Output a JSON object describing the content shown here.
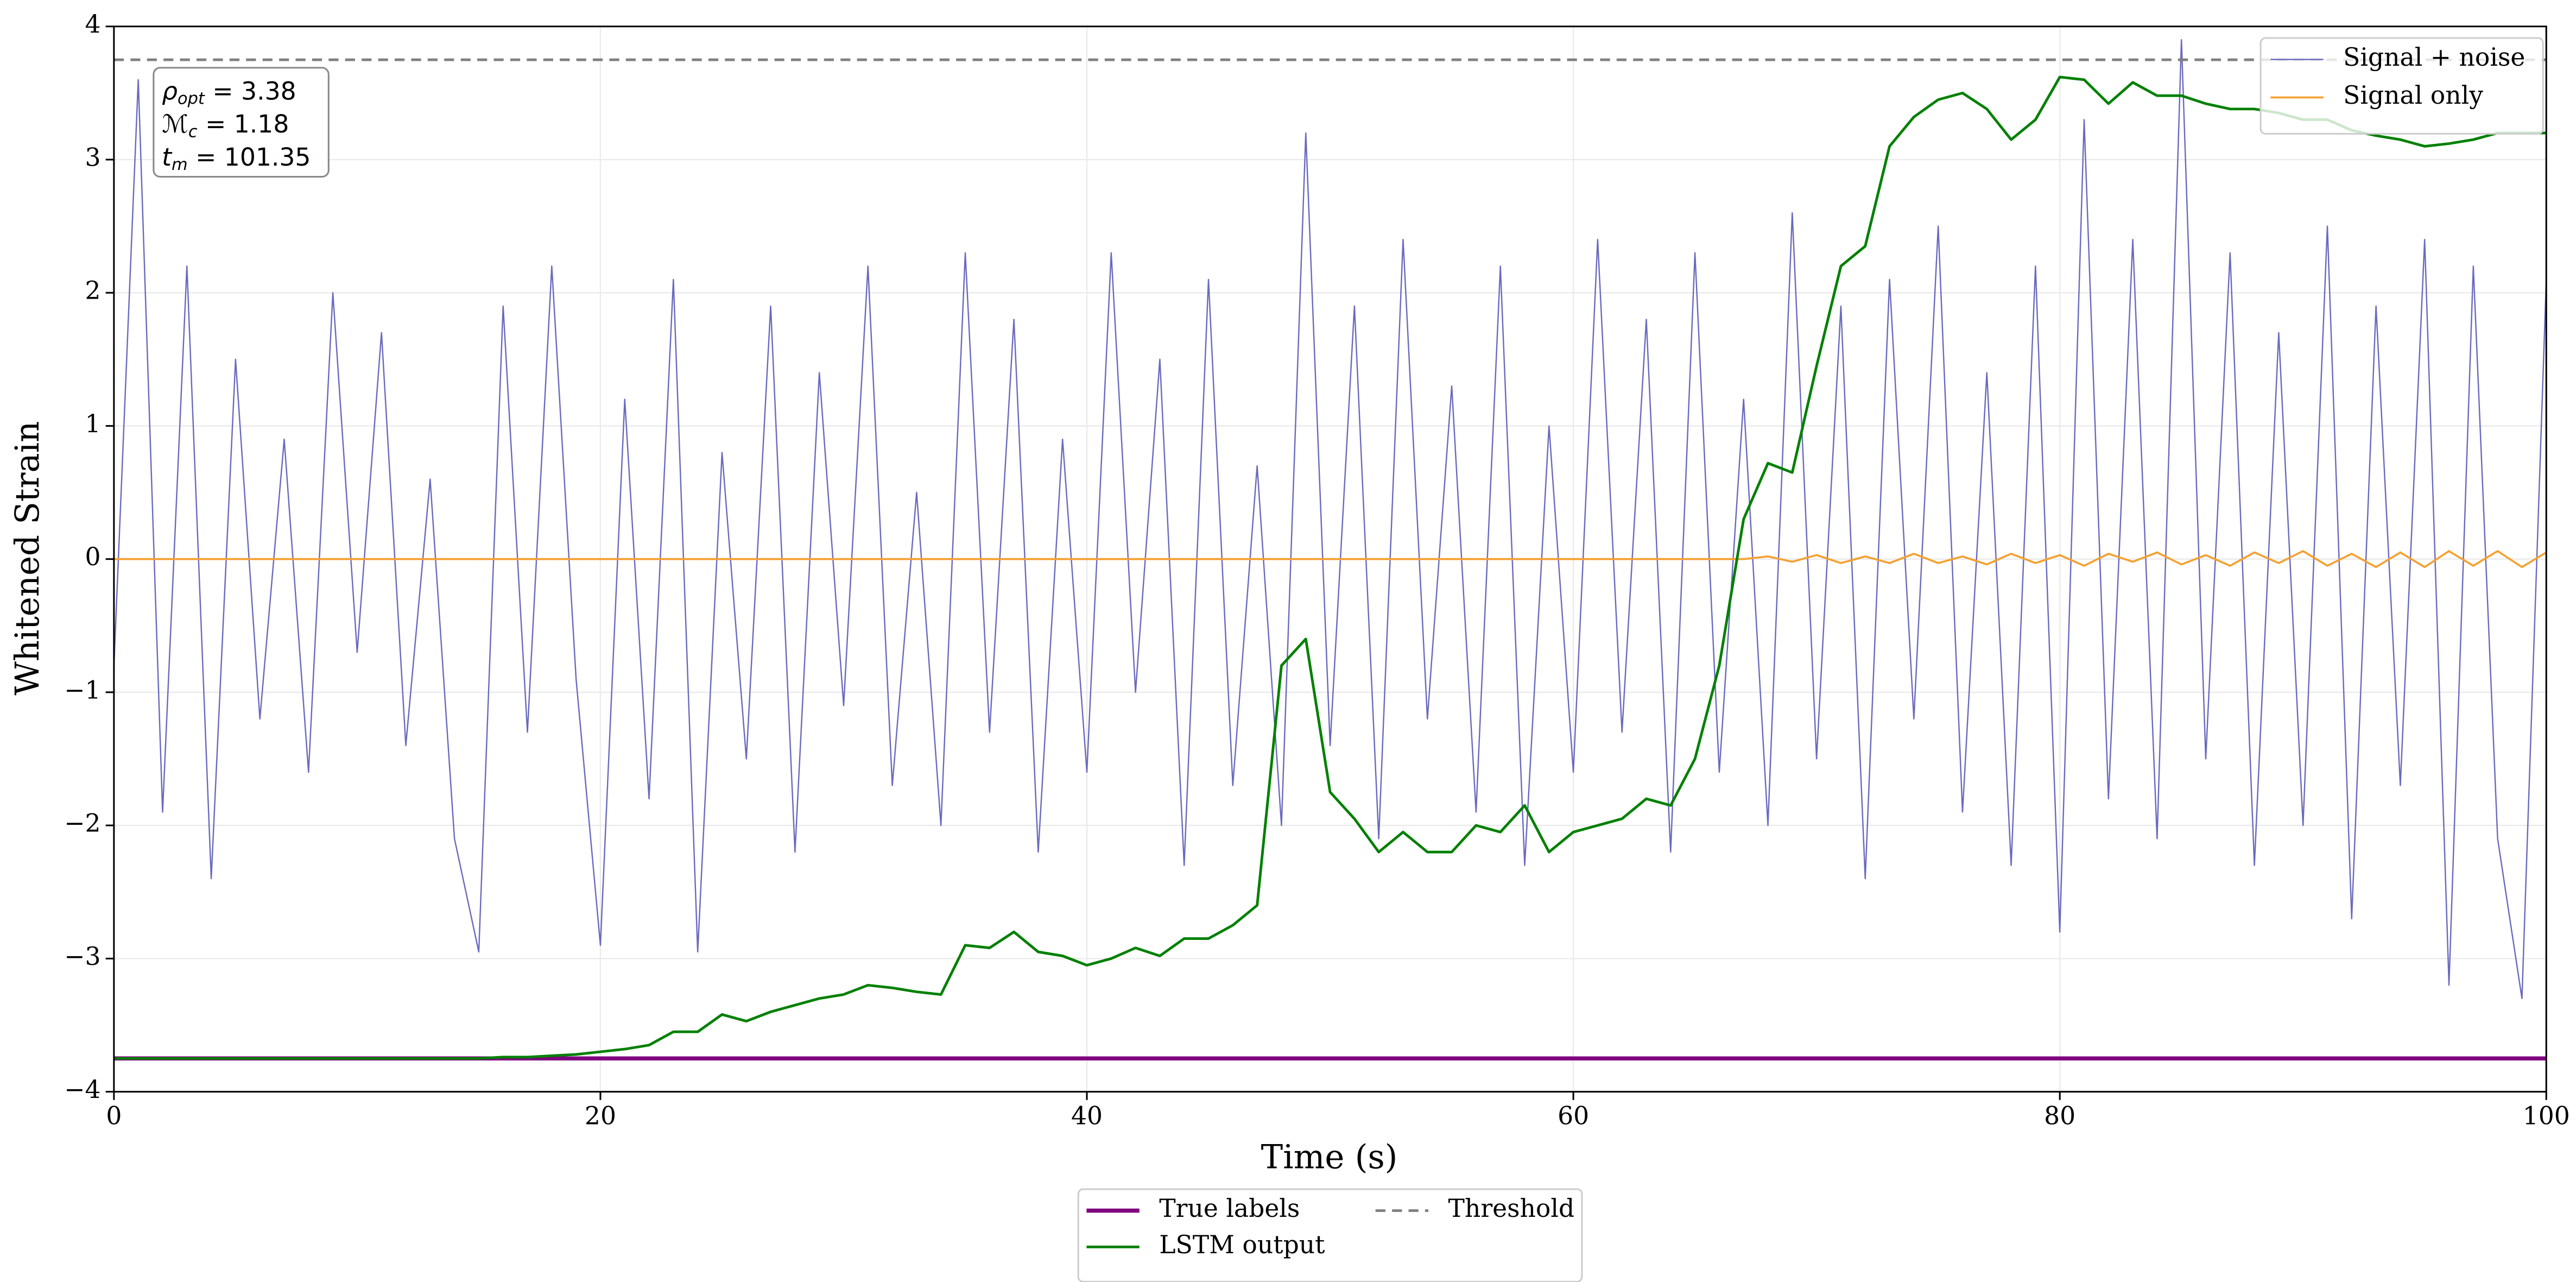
{
  "chart_data": {
    "type": "line",
    "xlabel": "Time (s)",
    "ylabel": "Whitened Strain",
    "xlim": [
      0,
      100
    ],
    "ylim": [
      -4,
      4
    ],
    "xticks": [
      0,
      20,
      40,
      60,
      80,
      100
    ],
    "yticks": [
      {
        "value": -4,
        "label": "−4"
      },
      {
        "value": -3,
        "label": "−3"
      },
      {
        "value": -2,
        "label": "−2"
      },
      {
        "value": -1,
        "label": "−1"
      },
      0,
      1,
      2,
      3,
      4
    ],
    "grid": true,
    "annotations": [
      {
        "symbol": "ρ",
        "subscript": "opt",
        "text": " = 3.38"
      },
      {
        "symbol": "ℳ",
        "subscript": "c",
        "text": " = 1.18"
      },
      {
        "symbol": "t",
        "subscript": "m",
        "text": " = 101.35"
      }
    ],
    "x": [
      0,
      1,
      2,
      3,
      4,
      5,
      6,
      7,
      8,
      9,
      10,
      11,
      12,
      13,
      14,
      15,
      16,
      17,
      18,
      19,
      20,
      21,
      22,
      23,
      24,
      25,
      26,
      27,
      28,
      29,
      30,
      31,
      32,
      33,
      34,
      35,
      36,
      37,
      38,
      39,
      40,
      41,
      42,
      43,
      44,
      45,
      46,
      47,
      48,
      49,
      50,
      51,
      52,
      53,
      54,
      55,
      56,
      57,
      58,
      59,
      60,
      61,
      62,
      63,
      64,
      65,
      66,
      67,
      68,
      69,
      70,
      71,
      72,
      73,
      74,
      75,
      76,
      77,
      78,
      79,
      80,
      81,
      82,
      83,
      84,
      85,
      86,
      87,
      88,
      89,
      90,
      91,
      92,
      93,
      94,
      95,
      96,
      97,
      98,
      99,
      100
    ],
    "series": [
      {
        "name": "Signal + noise",
        "color": "#6a6ac0",
        "width": 0.8,
        "legend": "upper right",
        "values": [
          -0.8,
          3.6,
          -1.9,
          2.2,
          -2.4,
          1.5,
          -1.2,
          0.9,
          -1.6,
          2.0,
          -0.7,
          1.7,
          -1.4,
          0.6,
          -2.1,
          -2.95,
          1.9,
          -1.3,
          2.2,
          -0.9,
          -2.9,
          1.2,
          -1.8,
          2.1,
          -2.95,
          0.8,
          -1.5,
          1.9,
          -2.2,
          1.4,
          -1.1,
          2.2,
          -1.7,
          0.5,
          -2.0,
          2.3,
          -1.3,
          1.8,
          -2.2,
          0.9,
          -1.6,
          2.3,
          -1.0,
          1.5,
          -2.3,
          2.1,
          -1.7,
          0.7,
          -2.0,
          3.2,
          -1.4,
          1.9,
          -2.1,
          2.4,
          -1.2,
          1.3,
          -1.9,
          2.2,
          -2.3,
          1.0,
          -1.6,
          2.4,
          -1.3,
          1.8,
          -2.2,
          2.3,
          -1.6,
          1.2,
          -2.0,
          2.6,
          -1.5,
          1.9,
          -2.4,
          2.1,
          -1.2,
          2.5,
          -1.9,
          1.4,
          -2.3,
          2.2,
          -2.8,
          3.3,
          -1.8,
          2.4,
          -2.1,
          3.9,
          -1.5,
          2.3,
          -2.3,
          1.7,
          -2.0,
          2.5,
          -2.7,
          1.9,
          -1.7,
          2.4,
          -3.2,
          2.2,
          -2.1,
          -3.3,
          2.1
        ]
      },
      {
        "name": "Signal only",
        "color": "#f5a030",
        "width": 1.2,
        "legend": "upper right",
        "values": [
          0,
          0,
          0,
          0,
          0,
          0,
          0,
          0,
          0,
          0,
          0,
          0,
          0,
          0,
          0,
          0,
          0,
          0,
          0,
          0,
          0,
          0,
          0,
          0,
          0,
          0,
          0,
          0,
          0,
          0,
          0,
          0,
          0,
          0,
          0,
          0,
          0,
          0,
          0,
          0,
          0,
          0,
          0,
          0,
          0,
          0,
          0,
          0,
          0,
          0,
          0,
          0,
          0,
          0,
          0,
          0,
          0,
          0,
          0,
          0,
          0,
          0,
          0,
          0,
          0,
          0,
          0,
          0,
          0.02,
          -0.02,
          0.03,
          -0.03,
          0.02,
          -0.03,
          0.04,
          -0.03,
          0.02,
          -0.04,
          0.04,
          -0.03,
          0.03,
          -0.05,
          0.04,
          -0.02,
          0.05,
          -0.04,
          0.03,
          -0.05,
          0.05,
          -0.03,
          0.06,
          -0.05,
          0.04,
          -0.06,
          0.05,
          -0.06,
          0.06,
          -0.05,
          0.06,
          -0.06,
          0.05
        ]
      },
      {
        "name": "True labels",
        "color": "#800080",
        "width": 2.5,
        "legend": "below",
        "values": [
          -3.75,
          -3.75,
          -3.75,
          -3.75,
          -3.75,
          -3.75,
          -3.75,
          -3.75,
          -3.75,
          -3.75,
          -3.75,
          -3.75,
          -3.75,
          -3.75,
          -3.75,
          -3.75,
          -3.75,
          -3.75,
          -3.75,
          -3.75,
          -3.75,
          -3.75,
          -3.75,
          -3.75,
          -3.75,
          -3.75,
          -3.75,
          -3.75,
          -3.75,
          -3.75,
          -3.75,
          -3.75,
          -3.75,
          -3.75,
          -3.75,
          -3.75,
          -3.75,
          -3.75,
          -3.75,
          -3.75,
          -3.75,
          -3.75,
          -3.75,
          -3.75,
          -3.75,
          -3.75,
          -3.75,
          -3.75,
          -3.75,
          -3.75,
          -3.75,
          -3.75,
          -3.75,
          -3.75,
          -3.75,
          -3.75,
          -3.75,
          -3.75,
          -3.75,
          -3.75,
          -3.75,
          -3.75,
          -3.75,
          -3.75,
          -3.75,
          -3.75,
          -3.75,
          -3.75,
          -3.75,
          -3.75,
          -3.75,
          -3.75,
          -3.75,
          -3.75,
          -3.75,
          -3.75,
          -3.75,
          -3.75,
          -3.75,
          -3.75,
          -3.75,
          -3.75,
          -3.75,
          -3.75,
          -3.75,
          -3.75,
          -3.75,
          -3.75,
          -3.75,
          -3.75,
          -3.75,
          -3.75,
          -3.75,
          -3.75,
          -3.75,
          -3.75,
          -3.75,
          -3.75,
          -3.75,
          -3.75,
          -3.75
        ]
      },
      {
        "name": "LSTM output",
        "color": "#008000",
        "width": 1.6,
        "legend": "below",
        "values": [
          -3.75,
          -3.75,
          -3.75,
          -3.75,
          -3.75,
          -3.75,
          -3.75,
          -3.75,
          -3.75,
          -3.75,
          -3.75,
          -3.75,
          -3.75,
          -3.75,
          -3.75,
          -3.75,
          -3.74,
          -3.74,
          -3.73,
          -3.72,
          -3.7,
          -3.68,
          -3.65,
          -3.55,
          -3.55,
          -3.42,
          -3.47,
          -3.4,
          -3.35,
          -3.3,
          -3.27,
          -3.2,
          -3.22,
          -3.25,
          -3.27,
          -2.9,
          -2.92,
          -2.8,
          -2.95,
          -2.98,
          -3.05,
          -3.0,
          -2.92,
          -2.98,
          -2.85,
          -2.85,
          -2.75,
          -2.6,
          -0.8,
          -0.6,
          -1.75,
          -1.95,
          -2.2,
          -2.05,
          -2.2,
          -2.2,
          -2.0,
          -2.05,
          -1.85,
          -2.2,
          -2.05,
          -2.0,
          -1.95,
          -1.8,
          -1.85,
          -1.5,
          -0.8,
          0.3,
          0.72,
          0.65,
          1.45,
          2.2,
          2.35,
          3.1,
          3.32,
          3.45,
          3.5,
          3.38,
          3.15,
          3.3,
          3.62,
          3.6,
          3.42,
          3.58,
          3.48,
          3.48,
          3.42,
          3.38,
          3.38,
          3.35,
          3.3,
          3.3,
          3.22,
          3.18,
          3.15,
          3.1,
          3.12,
          3.15,
          3.2,
          3.2,
          3.2
        ]
      }
    ],
    "threshold": {
      "name": "Threshold",
      "value": 3.75,
      "color": "#808080",
      "legend": "below"
    }
  }
}
